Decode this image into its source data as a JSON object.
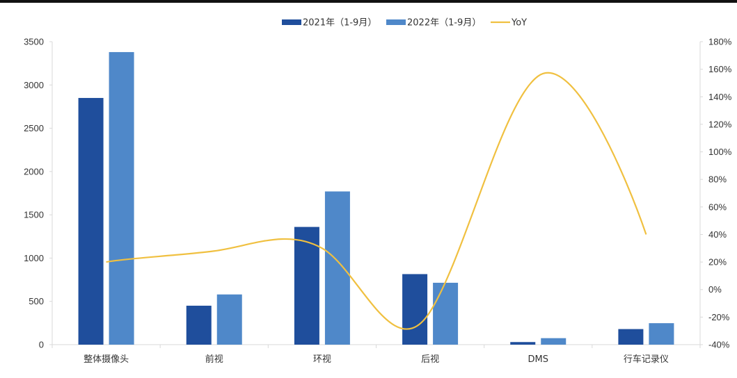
{
  "chart_data": {
    "type": "bar",
    "title": "",
    "xlabel": "",
    "ylabel": "",
    "categories": [
      "整体摄像头",
      "前视",
      "环视",
      "后视",
      "DMS",
      "行车记录仪"
    ],
    "series": [
      {
        "name": "2021年（1-9月）",
        "type": "bar",
        "axis": "left",
        "color": "#1f4e9c",
        "values": [
          2850,
          450,
          1360,
          815,
          30,
          180
        ]
      },
      {
        "name": "2022年（1-9月）",
        "type": "bar",
        "axis": "left",
        "color": "#4f88c9",
        "values": [
          3380,
          580,
          1770,
          715,
          75,
          248
        ]
      },
      {
        "name": "YoY",
        "type": "line",
        "axis": "right",
        "color": "#f0c040",
        "values": [
          20,
          28,
          30,
          -16,
          155,
          40
        ]
      }
    ],
    "ylim": [
      0,
      3500
    ],
    "y_ticks": [
      "0",
      "500",
      "1000",
      "1500",
      "2000",
      "2500",
      "3000",
      "3500"
    ],
    "y2lim": [
      -40,
      180
    ],
    "y2_ticks": [
      "-40%",
      "-20%",
      "0%",
      "20%",
      "40%",
      "60%",
      "80%",
      "100%",
      "120%",
      "140%",
      "160%",
      "180%"
    ],
    "grid": false,
    "legend_position": "top-center"
  }
}
